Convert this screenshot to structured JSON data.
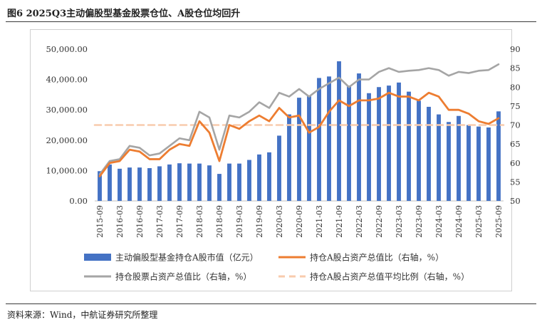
{
  "figure": {
    "title": "图6  2025Q3主动偏股型基金股票仓位、A股仓位均回升",
    "source": "资料来源：Wind，中航证券研究所整理"
  },
  "colors": {
    "bar": "#4472C4",
    "a_share_line": "#ED7D31",
    "stock_line": "#A5A5A5",
    "avg_line": "#F8CBAD"
  },
  "chart_data": {
    "type": "bar",
    "categories": [
      "2015-09",
      "2015-12",
      "2016-03",
      "2016-06",
      "2016-09",
      "2016-12",
      "2017-03",
      "2017-06",
      "2017-09",
      "2017-12",
      "2018-03",
      "2018-06",
      "2018-09",
      "2018-12",
      "2019-03",
      "2019-06",
      "2019-09",
      "2019-12",
      "2020-03",
      "2020-06",
      "2020-09",
      "2020-12",
      "2021-03",
      "2021-06",
      "2021-09",
      "2021-12",
      "2022-03",
      "2022-06",
      "2022-09",
      "2022-12",
      "2023-03",
      "2023-06",
      "2023-09",
      "2023-12",
      "2024-03",
      "2024-06",
      "2024-09",
      "2024-12",
      "2025-03",
      "2025-06",
      "2025-09"
    ],
    "x_tick_labels": [
      "2015-09",
      "2016-03",
      "2016-09",
      "2017-03",
      "2017-09",
      "2018-03",
      "2018-09",
      "2019-03",
      "2019-09",
      "2020-03",
      "2020-09",
      "2021-03",
      "2021-09",
      "2022-03",
      "2022-09",
      "2023-03",
      "2023-09",
      "2024-03",
      "2024-09",
      "2025-03",
      "2025-09"
    ],
    "series": [
      {
        "name": "主动偏股型基金持仓A股市值（亿元）",
        "type": "bar",
        "axis": "left",
        "values": [
          9800,
          12000,
          10600,
          11000,
          11000,
          10800,
          11400,
          12000,
          12400,
          12300,
          12300,
          11700,
          8900,
          12300,
          12300,
          13500,
          15300,
          16000,
          21500,
          28500,
          34000,
          34500,
          40500,
          41000,
          46000,
          38000,
          42000,
          35500,
          37500,
          38000,
          39000,
          36000,
          33000,
          31000,
          28500,
          26000,
          28000,
          25000,
          24500,
          24200,
          29500
        ]
      },
      {
        "name": "持仓A股占资产总值比（右轴，%）",
        "type": "line",
        "axis": "right",
        "values": [
          56.5,
          60,
          60.5,
          63.5,
          63,
          61,
          61,
          63.5,
          65,
          64.5,
          71,
          68,
          60.5,
          70,
          69,
          71,
          72.5,
          71,
          74.5,
          72,
          72.5,
          68,
          69.5,
          73.5,
          76.5,
          75,
          76.5,
          76.5,
          77,
          78.5,
          77.5,
          77.5,
          76.5,
          78.5,
          77.5,
          74,
          74,
          73,
          71,
          70.3,
          71.8
        ]
      },
      {
        "name": "持仓股票占资产总值比（右轴，%）",
        "type": "line",
        "axis": "right",
        "values": [
          57,
          60.5,
          61,
          64.5,
          64,
          62,
          62.5,
          64.5,
          66.5,
          66,
          73.5,
          72,
          63.5,
          72.5,
          72,
          73.5,
          76,
          74.5,
          78.5,
          77.5,
          79.5,
          77.5,
          79.5,
          81,
          82.5,
          80,
          82,
          82,
          84,
          85,
          84,
          84.3,
          84.5,
          85,
          84.5,
          83,
          84,
          83.7,
          84.3,
          84.5,
          86
        ]
      },
      {
        "name": "持仓A股占资产总值平均比例（右轴，%）",
        "type": "line",
        "axis": "right",
        "style": "dashed",
        "values": [
          70,
          70,
          70,
          70,
          70,
          70,
          70,
          70,
          70,
          70,
          70,
          70,
          70,
          70,
          70,
          70,
          70,
          70,
          70,
          70,
          70,
          70,
          70,
          70,
          70,
          70,
          70,
          70,
          70,
          70,
          70,
          70,
          70,
          70,
          70,
          70,
          70,
          70,
          70,
          70,
          70
        ]
      }
    ],
    "y_left": {
      "min": 0,
      "max": 50000,
      "step": 10000,
      "tick_labels": [
        "0.00",
        "10,000.00",
        "20,000.00",
        "30,000.00",
        "40,000.00",
        "50,000.00"
      ]
    },
    "y_right": {
      "min": 50,
      "max": 90,
      "step": 5,
      "tick_labels": [
        "50",
        "55",
        "60",
        "65",
        "70",
        "75",
        "80",
        "85",
        "90"
      ]
    },
    "legend": {
      "position": "bottom",
      "items": [
        "主动偏股型基金持仓A股市值（亿元）",
        "持仓A股占资产总值比（右轴，%）",
        "持仓股票占资产总值比（右轴，%）",
        "持仓A股占资产总值平均比例（右轴，%）"
      ]
    },
    "grid": false
  }
}
